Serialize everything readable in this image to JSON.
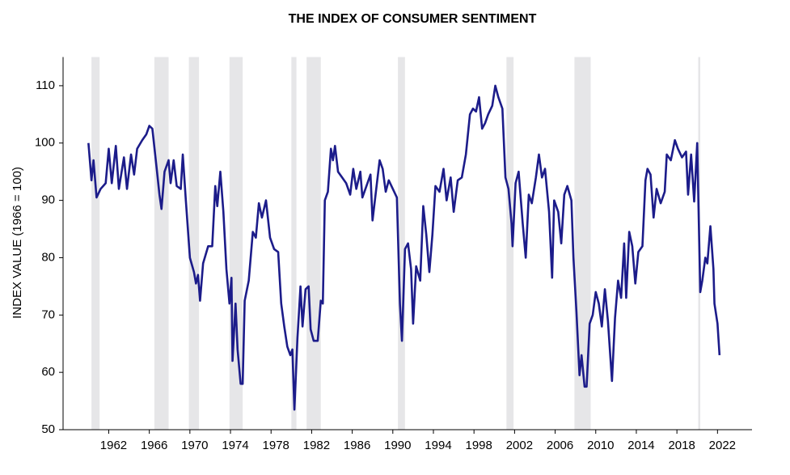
{
  "chart_data": {
    "type": "line",
    "title": "THE INDEX OF CONSUMER SENTIMENT",
    "y_label": "INDEX VALUE (1966 = 100)",
    "xlim": [
      1957.5,
      2025.4
    ],
    "ylim": [
      50,
      115
    ],
    "xticks": [
      1962,
      1966,
      1970,
      1974,
      1978,
      1982,
      1986,
      1990,
      1994,
      1998,
      2002,
      2006,
      2010,
      2014,
      2018,
      2022
    ],
    "yticks": [
      50,
      60,
      70,
      80,
      90,
      100,
      110
    ],
    "recessions": [
      [
        1960.3,
        1961.1
      ],
      [
        1966.5,
        1967.9
      ],
      [
        1969.9,
        1970.9
      ],
      [
        1973.9,
        1975.2
      ],
      [
        1980.0,
        1980.5
      ],
      [
        1981.5,
        1982.9
      ],
      [
        1990.5,
        1991.2
      ],
      [
        2001.2,
        2001.9
      ],
      [
        2007.9,
        2009.5
      ],
      [
        2020.1,
        2020.3
      ]
    ],
    "recession_color": "#e6e6e8",
    "series": [
      {
        "color": "#1c1c8a",
        "x": [
          1960.0,
          1960.3,
          1960.5,
          1960.8,
          1961.2,
          1961.7,
          1962.0,
          1962.3,
          1962.7,
          1963.0,
          1963.5,
          1963.8,
          1964.2,
          1964.5,
          1964.8,
          1965.3,
          1965.7,
          1966.0,
          1966.3,
          1966.7,
          1967.0,
          1967.2,
          1967.5,
          1967.9,
          1968.1,
          1968.4,
          1968.7,
          1969.1,
          1969.3,
          1969.6,
          1970.0,
          1970.4,
          1970.6,
          1970.8,
          1971.0,
          1971.3,
          1971.8,
          1972.2,
          1972.5,
          1972.7,
          1973.0,
          1973.3,
          1973.6,
          1973.9,
          1974.1,
          1974.2,
          1974.5,
          1974.7,
          1975.0,
          1975.2,
          1975.4,
          1975.8,
          1976.2,
          1976.5,
          1976.8,
          1977.1,
          1977.5,
          1977.9,
          1978.3,
          1978.7,
          1979.0,
          1979.3,
          1979.6,
          1979.9,
          1980.1,
          1980.3,
          1980.6,
          1980.9,
          1981.1,
          1981.4,
          1981.7,
          1981.9,
          1982.2,
          1982.6,
          1982.9,
          1983.1,
          1983.3,
          1983.6,
          1983.9,
          1984.1,
          1984.3,
          1984.6,
          1985.0,
          1985.4,
          1985.8,
          1986.1,
          1986.4,
          1986.8,
          1987.0,
          1987.4,
          1987.8,
          1988.0,
          1988.3,
          1988.7,
          1989.0,
          1989.3,
          1989.6,
          1990.0,
          1990.4,
          1990.7,
          1990.9,
          1991.2,
          1991.5,
          1991.8,
          1992.0,
          1992.3,
          1992.7,
          1993.0,
          1993.3,
          1993.6,
          1993.9,
          1994.2,
          1994.6,
          1995.0,
          1995.3,
          1995.7,
          1996.0,
          1996.4,
          1996.8,
          1997.2,
          1997.6,
          1997.9,
          1998.2,
          1998.5,
          1998.8,
          1999.1,
          1999.4,
          1999.8,
          2000.1,
          2000.4,
          2000.8,
          2001.1,
          2001.4,
          2001.7,
          2001.8,
          2002.1,
          2002.4,
          2002.8,
          2003.1,
          2003.4,
          2003.7,
          2004.1,
          2004.4,
          2004.7,
          2005.0,
          2005.4,
          2005.7,
          2005.9,
          2006.3,
          2006.6,
          2006.9,
          2007.2,
          2007.6,
          2007.8,
          2008.1,
          2008.4,
          2008.6,
          2008.9,
          2009.1,
          2009.4,
          2009.7,
          2010.0,
          2010.3,
          2010.6,
          2010.9,
          2011.2,
          2011.6,
          2011.9,
          2012.2,
          2012.5,
          2012.8,
          2013.0,
          2013.3,
          2013.6,
          2013.9,
          2014.2,
          2014.6,
          2014.9,
          2015.1,
          2015.4,
          2015.7,
          2016.0,
          2016.4,
          2016.8,
          2017.0,
          2017.4,
          2017.8,
          2018.1,
          2018.5,
          2018.9,
          2019.1,
          2019.4,
          2019.7,
          2020.0,
          2020.3,
          2020.5,
          2020.8,
          2021.0,
          2021.3,
          2021.6,
          2021.7,
          2022.0,
          2022.2
        ],
        "values": [
          100,
          93.5,
          97,
          90.5,
          92,
          93,
          99,
          93,
          99.5,
          92,
          97.5,
          92,
          98,
          94.5,
          99,
          100.5,
          101.5,
          103,
          102.5,
          96,
          91,
          88.5,
          95,
          97,
          93,
          97,
          92.5,
          92,
          98,
          90,
          80,
          77.5,
          75.5,
          77,
          72.5,
          79,
          82,
          82,
          92.5,
          89,
          95,
          88,
          78,
          72,
          76.5,
          62,
          72,
          64,
          58,
          58,
          72.5,
          76,
          84.5,
          83.5,
          89.5,
          87,
          90,
          83.5,
          81.5,
          81,
          72,
          68,
          64.5,
          63,
          64,
          53.5,
          66,
          75,
          68,
          74.5,
          75,
          67.5,
          65.5,
          65.5,
          72.5,
          72,
          90,
          91.5,
          99,
          97,
          99.5,
          95,
          94,
          93,
          91,
          95.5,
          92,
          95,
          90.5,
          92.5,
          94.5,
          86.5,
          91,
          97,
          95.5,
          91.5,
          93.5,
          92,
          90.5,
          72,
          65.5,
          81.5,
          82.5,
          78,
          68.5,
          78.5,
          76,
          89,
          84,
          77.5,
          84,
          92.5,
          91.5,
          95.5,
          90,
          94,
          88,
          93.5,
          94,
          98,
          105,
          106,
          105.5,
          108,
          102.5,
          103.5,
          105,
          106.5,
          110,
          108,
          106,
          94,
          92,
          86,
          82,
          93,
          95,
          86,
          80,
          91,
          89.5,
          94,
          98,
          94,
          95.5,
          88,
          76.5,
          90,
          88,
          82.5,
          91,
          92.5,
          90,
          80,
          70.5,
          59.5,
          63,
          57.5,
          57.5,
          68.5,
          70,
          74,
          72,
          68,
          74.5,
          69,
          58.5,
          69.5,
          76,
          73,
          82.5,
          73,
          84.5,
          82,
          75.5,
          81,
          82,
          93.5,
          95.5,
          94.5,
          87,
          92,
          89.5,
          91.5,
          98,
          97,
          100.5,
          99,
          97.5,
          98.5,
          91,
          98,
          89.8,
          100,
          74,
          76,
          80,
          79,
          85.5,
          78,
          72,
          68.5,
          63
        ]
      }
    ]
  }
}
